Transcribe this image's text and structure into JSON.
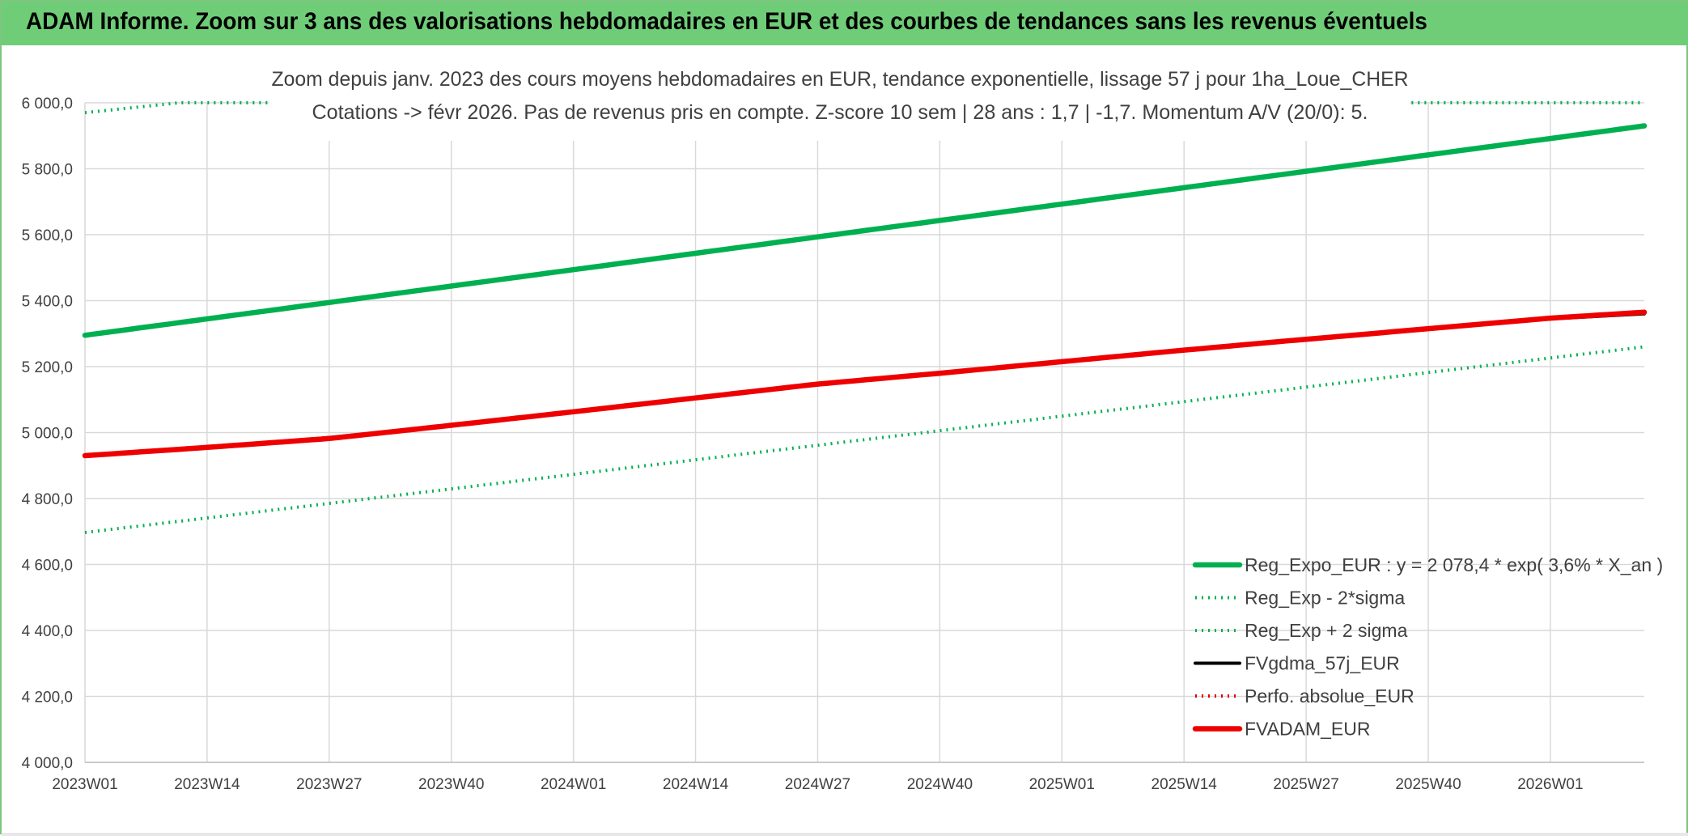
{
  "page_title": "ADAM Informe. Zoom sur 3 ans des valorisations hebdomadaires en EUR et des courbes de tendances sans les revenus éventuels",
  "colors": {
    "title_bar": "#6fcd78",
    "reg_expo": "#00b050",
    "fvgdma": "#000000",
    "perfo": "#e00000",
    "fvadam": "#ee0000",
    "grid": "#d9d9d9"
  },
  "chart_data": {
    "type": "line",
    "title": "Zoom depuis janv. 2023 des cours moyens hebdomadaires en EUR, tendance exponentielle, lissage 57 j pour 1ha_Loue_CHER",
    "subtitle": "Cotations -> févr 2026. Pas de revenus pris en compte. Z-score 10 sem | 28 ans : 1,7 | -1,7. Momentum A/V (20/0): 5.",
    "xlabel": "",
    "ylabel": "",
    "ylim": [
      4000,
      6000
    ],
    "y_ticks": [
      "6 000,0",
      "5 800,0",
      "5 600,0",
      "5 400,0",
      "5 200,0",
      "5 000,0",
      "4 800,0",
      "4 600,0",
      "4 400,0",
      "4 200,0",
      "4 000,0"
    ],
    "x_ticks": [
      "2023W01",
      "2023W14",
      "2023W27",
      "2023W40",
      "2024W01",
      "2024W14",
      "2024W27",
      "2024W40",
      "2025W01",
      "2025W14",
      "2025W27",
      "2025W40",
      "2026W01"
    ],
    "x_range_weeks": [
      0,
      166
    ],
    "grid": true,
    "legend_position": "bottom-right",
    "series": [
      {
        "name": "Reg_Expo_EUR : y = 2 078,4 * exp( 3,6% *  X_an )",
        "style": "thick-solid",
        "color": "#00b050",
        "x": [
          0,
          166
        ],
        "values": [
          5295,
          5930
        ]
      },
      {
        "name": "Reg_Exp - 2*sigma",
        "style": "dotted",
        "color": "#00b050",
        "x": [
          0,
          166
        ],
        "values": [
          4697,
          5260
        ]
      },
      {
        "name": "Reg_Exp + 2 sigma",
        "style": "dotted",
        "color": "#00b050",
        "x": [
          0,
          10,
          166
        ],
        "values": [
          5970,
          6000,
          6000
        ]
      },
      {
        "name": "FVgdma_57j_EUR",
        "style": "solid",
        "color": "#000000",
        "x": [
          0,
          13,
          26,
          39,
          52,
          65,
          78,
          91,
          104,
          117,
          130,
          143,
          156,
          166
        ],
        "values": [
          4930,
          4955,
          4985,
          5022,
          5063,
          5105,
          5147,
          5180,
          5215,
          5250,
          5283,
          5315,
          5345,
          5360
        ]
      },
      {
        "name": "Perfo. absolue_EUR",
        "style": "dotted",
        "color": "#e00000",
        "x": [],
        "values": []
      },
      {
        "name": "FVADAM_EUR",
        "style": "thick-solid",
        "color": "#ee0000",
        "x": [
          0,
          13,
          26,
          39,
          52,
          65,
          78,
          91,
          104,
          117,
          130,
          143,
          156,
          166
        ],
        "values": [
          4930,
          4955,
          4982,
          5022,
          5063,
          5105,
          5147,
          5180,
          5215,
          5250,
          5283,
          5315,
          5347,
          5365
        ]
      }
    ]
  }
}
